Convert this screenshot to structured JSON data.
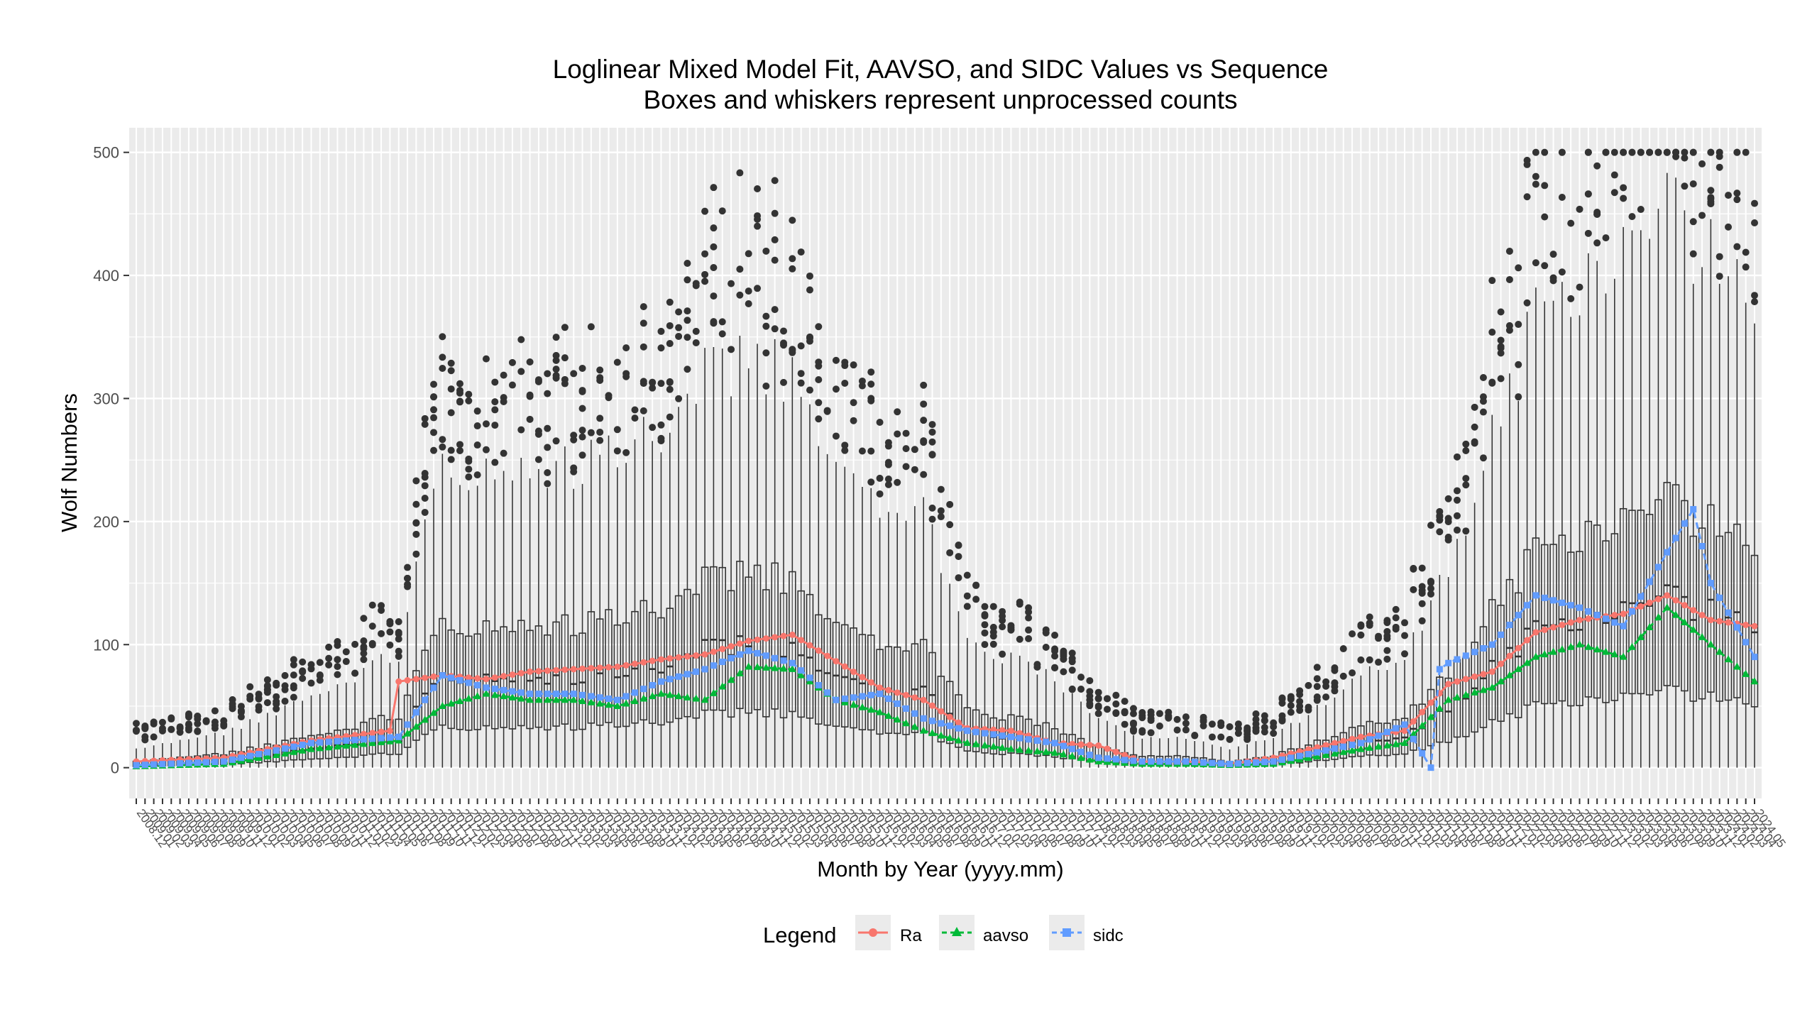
{
  "chart_data": {
    "type": "box",
    "title": "Loglinear Mixed Model Fit, AAVSO, and SIDC Values vs Sequence",
    "subtitle": "Boxes and whiskers represent unprocessed counts",
    "xlabel": "Month by Year (yyyy.mm)",
    "ylabel": "Wolf Numbers",
    "ylim": [
      -25,
      520
    ],
    "yticks": [
      0,
      100,
      200,
      300,
      400,
      500
    ],
    "x_start": "2008.12",
    "n_months": 186,
    "x_tick_note": "one tick per month, labels rotated and overlapping",
    "grid": true,
    "legend": {
      "title": "Legend",
      "position": "bottom",
      "entries": [
        {
          "name": "Ra",
          "color": "#F8766D",
          "marker": "circle",
          "line": "solid"
        },
        {
          "name": "aavso",
          "color": "#00BA38",
          "marker": "triangle",
          "line": "dashed"
        },
        {
          "name": "sidc",
          "color": "#619CFF",
          "marker": "square",
          "line": "dashed"
        }
      ]
    },
    "colors": {
      "panel": "#EBEBEB",
      "grid": "#FFFFFF",
      "box": "#333333",
      "outlier": "#333333"
    },
    "box_anchor_months": [
      0,
      10,
      20,
      30,
      35,
      40,
      45,
      50,
      55,
      60,
      65,
      70,
      75,
      80,
      85,
      90,
      95,
      100,
      105,
      110,
      115,
      120,
      125,
      130,
      140,
      145,
      150,
      155,
      160,
      165,
      170,
      175,
      180,
      185
    ],
    "box_anchor_medians": [
      2,
      6,
      15,
      26,
      75,
      70,
      72,
      75,
      80,
      85,
      95,
      100,
      100,
      70,
      65,
      60,
      30,
      25,
      20,
      10,
      5,
      5,
      2,
      5,
      20,
      25,
      50,
      80,
      110,
      115,
      125,
      140,
      125,
      110
    ],
    "series": [
      {
        "name": "Ra",
        "x": [
          0,
          10,
          20,
          29,
          30,
          35,
          40,
          45,
          50,
          55,
          60,
          65,
          70,
          75,
          85,
          90,
          95,
          100,
          105,
          110,
          115,
          120,
          125,
          130,
          140,
          145,
          150,
          155,
          160,
          165,
          170,
          175,
          180,
          185
        ],
        "values": [
          5,
          8,
          22,
          30,
          70,
          75,
          72,
          78,
          80,
          82,
          88,
          92,
          103,
          108,
          65,
          55,
          32,
          30,
          20,
          18,
          5,
          5,
          3,
          8,
          25,
          30,
          68,
          78,
          110,
          120,
          125,
          140,
          120,
          115
        ]
      },
      {
        "name": "aavso",
        "x": [
          0,
          10,
          20,
          30,
          35,
          40,
          45,
          50,
          55,
          60,
          65,
          70,
          75,
          80,
          85,
          90,
          95,
          100,
          105,
          110,
          115,
          120,
          125,
          130,
          140,
          145,
          150,
          155,
          160,
          165,
          170,
          175,
          180,
          185
        ],
        "values": [
          1,
          3,
          15,
          22,
          50,
          60,
          55,
          55,
          50,
          60,
          55,
          82,
          80,
          55,
          45,
          30,
          20,
          15,
          12,
          5,
          3,
          3,
          2,
          3,
          15,
          20,
          55,
          65,
          90,
          100,
          90,
          130,
          100,
          70
        ]
      },
      {
        "name": "sidc",
        "x": [
          0,
          10,
          20,
          30,
          35,
          40,
          45,
          50,
          55,
          60,
          65,
          70,
          75,
          80,
          85,
          90,
          95,
          100,
          105,
          110,
          115,
          120,
          125,
          130,
          140,
          145,
          148,
          149,
          150,
          155,
          160,
          165,
          170,
          175,
          178,
          180,
          185
        ],
        "values": [
          2,
          5,
          20,
          25,
          75,
          65,
          60,
          60,
          55,
          70,
          80,
          95,
          85,
          55,
          60,
          40,
          30,
          25,
          20,
          8,
          5,
          5,
          3,
          5,
          20,
          35,
          0,
          80,
          85,
          100,
          140,
          130,
          115,
          175,
          210,
          150,
          90
        ]
      }
    ]
  }
}
